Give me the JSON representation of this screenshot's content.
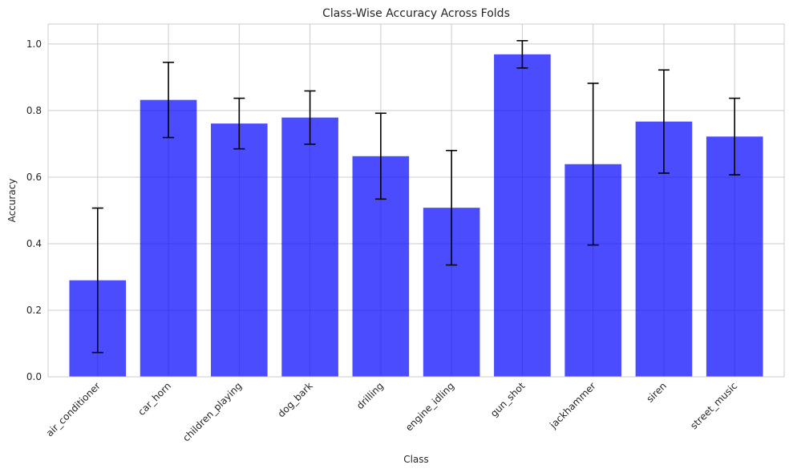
{
  "chart_data": {
    "type": "bar",
    "title": "Class-Wise Accuracy Across Folds",
    "xlabel": "Class",
    "ylabel": "Accuracy",
    "categories": [
      "air_conditioner",
      "car_horn",
      "children_playing",
      "dog_bark",
      "drilling",
      "engine_idling",
      "gun_shot",
      "jackhammer",
      "siren",
      "street_music"
    ],
    "values": [
      0.29,
      0.832,
      0.761,
      0.779,
      0.663,
      0.508,
      0.969,
      0.639,
      0.767,
      0.722
    ],
    "errors": [
      0.217,
      0.113,
      0.076,
      0.08,
      0.129,
      0.172,
      0.041,
      0.243,
      0.155,
      0.115
    ],
    "ylim": [
      0.0,
      1.06
    ],
    "yticks": [
      0.0,
      0.2,
      0.4,
      0.6,
      0.8,
      1.0
    ],
    "ytick_labels": [
      "0.0",
      "0.2",
      "0.4",
      "0.6",
      "0.8",
      "1.0"
    ],
    "grid": true,
    "bar_color": "#0000ff",
    "bar_opacity": 0.7,
    "error_color": "#000000",
    "grid_color": "#cccccc"
  }
}
